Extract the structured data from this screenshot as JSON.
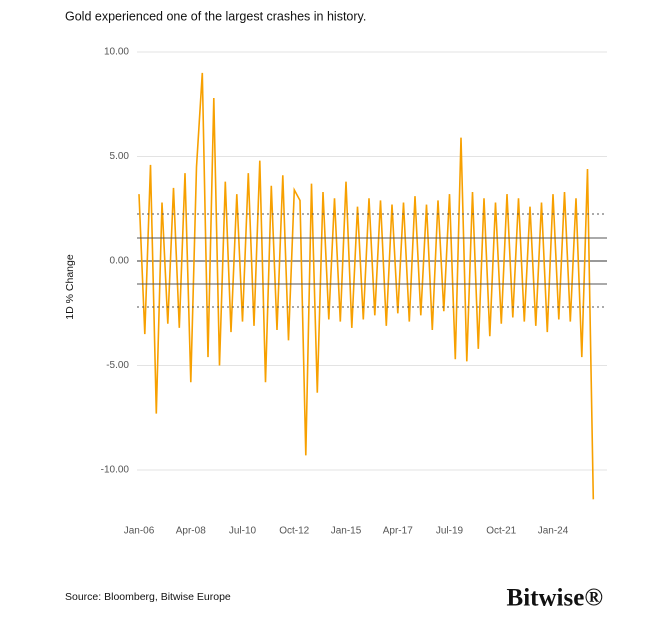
{
  "chart_data": {
    "type": "line",
    "title": "Gold experienced one of the largest crashes in history.",
    "y_label": "1D % Change",
    "categories": [
      "Jan-06",
      null,
      null,
      null,
      null,
      null,
      null,
      null,
      null,
      "Apr-08",
      null,
      null,
      null,
      null,
      null,
      null,
      null,
      null,
      "Jul-10",
      null,
      null,
      null,
      null,
      null,
      null,
      null,
      null,
      "Oct-12",
      null,
      null,
      null,
      null,
      null,
      null,
      null,
      null,
      "Jan-15",
      null,
      null,
      null,
      null,
      null,
      null,
      null,
      null,
      "Apr-17",
      null,
      null,
      null,
      null,
      null,
      null,
      null,
      null,
      "Jul-19",
      null,
      null,
      null,
      null,
      null,
      null,
      null,
      null,
      "Oct-21",
      null,
      null,
      null,
      null,
      null,
      null,
      null,
      null,
      "Jan-24",
      null,
      null,
      null,
      null,
      null,
      null,
      null
    ],
    "series": [
      {
        "name": "Gold",
        "color": "#f7a000",
        "values": [
          3.2,
          -3.5,
          4.6,
          -7.3,
          2.8,
          -3.0,
          3.5,
          -3.2,
          4.2,
          -5.8,
          4.5,
          9.0,
          -4.6,
          7.8,
          -5.0,
          3.8,
          -3.4,
          3.2,
          -2.9,
          4.2,
          -3.1,
          4.8,
          -5.8,
          3.6,
          -3.3,
          4.1,
          -3.8,
          3.4,
          2.9,
          -9.3,
          3.7,
          -6.3,
          3.3,
          -2.8,
          3.0,
          -2.9,
          3.8,
          -3.2,
          2.6,
          -2.8,
          3.0,
          -2.6,
          2.9,
          -3.1,
          2.7,
          -2.5,
          2.8,
          -2.9,
          3.1,
          -2.6,
          2.7,
          -3.3,
          2.9,
          -2.4,
          3.2,
          -4.7,
          5.9,
          -4.8,
          3.3,
          -4.2,
          3.0,
          -3.6,
          2.8,
          -3.0,
          3.2,
          -2.7,
          3.0,
          -2.9,
          2.6,
          -3.1,
          2.8,
          -3.4,
          3.2,
          -2.8,
          3.3,
          -2.9,
          3.0,
          -4.6,
          4.4,
          -11.4
        ]
      }
    ],
    "ylim": [
      -12,
      10.5
    ],
    "yticks": [
      {
        "value": -10,
        "label": "-10.00"
      },
      {
        "value": -5,
        "label": "-5.00"
      },
      {
        "value": 0,
        "label": "0.00"
      },
      {
        "value": 5,
        "label": "5.00"
      },
      {
        "value": 10,
        "label": "10.00"
      }
    ],
    "reference_lines": [
      {
        "value": 2.25,
        "style": "dotted"
      },
      {
        "value": 1.1,
        "style": "solid"
      },
      {
        "value": -1.1,
        "style": "solid"
      },
      {
        "value": -2.2,
        "style": "dotted"
      }
    ],
    "grid": true
  },
  "footer": {
    "source": "Source: Bloomberg, Bitwise Europe",
    "logo": "Bitwise®"
  }
}
